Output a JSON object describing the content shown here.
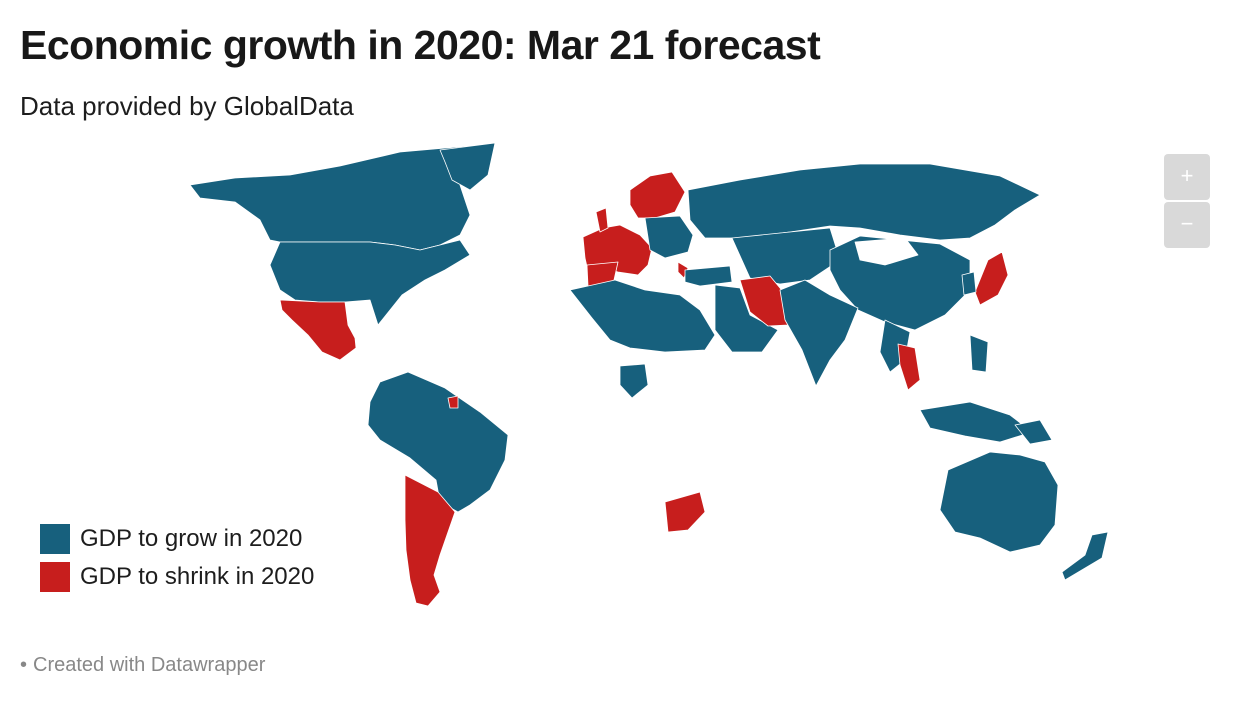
{
  "header": {
    "title": "Economic growth in 2020: Mar 21 forecast",
    "subtitle": "Data provided by GlobalData"
  },
  "zoom": {
    "in_label": "+",
    "out_label": "−"
  },
  "legend": [
    {
      "label": "GDP to grow in 2020",
      "color": "#17607d"
    },
    {
      "label": "GDP to shrink in 2020",
      "color": "#c71e1d"
    }
  ],
  "colors": {
    "grow": "#17607d",
    "shrink": "#c71e1d",
    "border": "#ffffff",
    "zoom_bg": "#d9d9d9"
  },
  "footer": {
    "bullet": "•",
    "credit": "Created with Datawrapper"
  }
}
